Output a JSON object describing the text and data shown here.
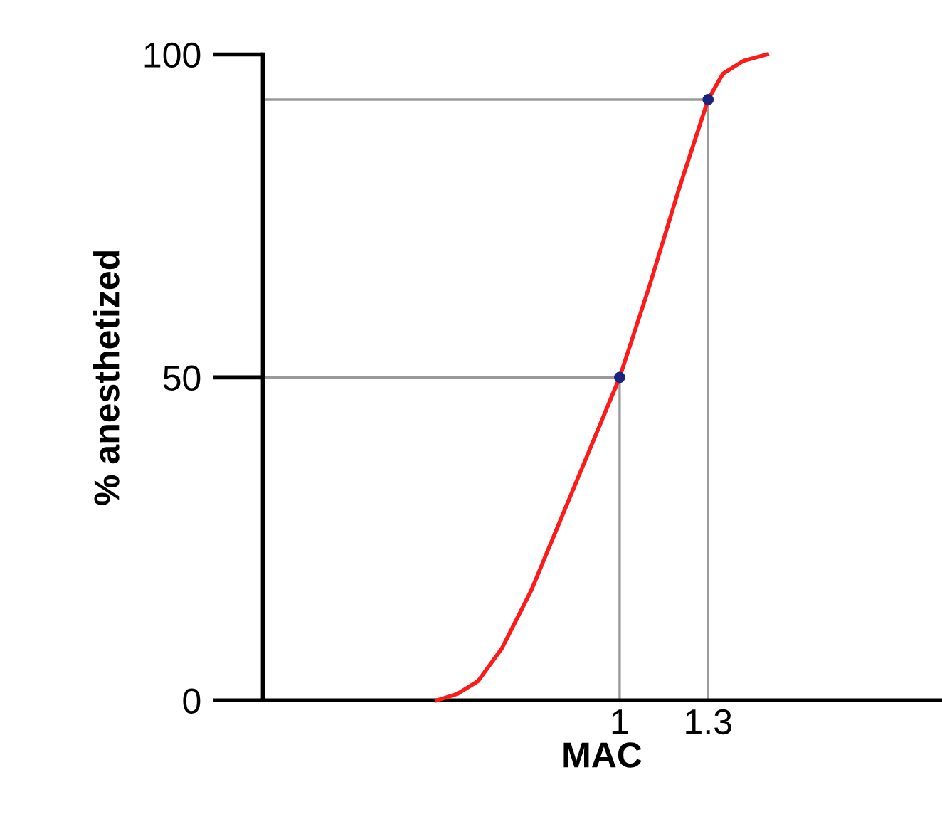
{
  "chart_data": {
    "type": "line",
    "xlabel": "MAC",
    "ylabel": "% anesthetized",
    "xlim": [
      -0.21,
      2.09
    ],
    "ylim": [
      0,
      100
    ],
    "xticks": [
      1,
      1.3
    ],
    "yticks": [
      0,
      50,
      100
    ],
    "grid": false,
    "legend": false,
    "series": [
      {
        "color": "#9a9a9a",
        "x": [
          -0.21,
          1,
          1
        ],
        "values": [
          50,
          50,
          0
        ]
      },
      {
        "color": "#9a9a9a",
        "x": [
          -0.21,
          1.3,
          1.3
        ],
        "values": [
          93,
          93,
          0
        ]
      },
      {
        "color": "#ff1a1a",
        "x": [
          0.38,
          0.45,
          0.52,
          0.6,
          0.7,
          0.8,
          0.9,
          1,
          1.1,
          1.2,
          1.3,
          1.35,
          1.42,
          1.5
        ],
        "values": [
          0,
          1,
          3,
          8,
          17,
          28,
          39,
          50,
          64,
          79,
          93,
          97,
          99,
          100
        ]
      },
      {
        "type": "scatter",
        "color": "#1a237e",
        "marker": "circle",
        "x": [
          1,
          1.3
        ],
        "values": [
          50,
          93
        ]
      }
    ]
  }
}
